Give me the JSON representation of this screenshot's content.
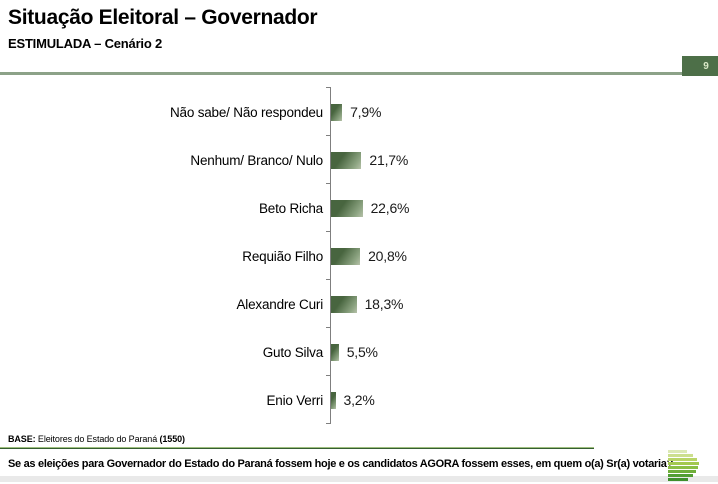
{
  "header": {
    "title": "Situação Eleitoral – Governador",
    "subtitle": "ESTIMULADA – Cenário 2",
    "page_number": "9"
  },
  "chart_data": {
    "type": "bar",
    "orientation": "horizontal",
    "categories": [
      "Não sabe/ Não respondeu",
      "Nenhum/ Branco/ Nulo",
      "Beto Richa",
      "Requião Filho",
      "Alexandre Curi",
      "Guto Silva",
      "Enio Verri"
    ],
    "values": [
      7.9,
      21.7,
      22.6,
      20.8,
      18.3,
      5.5,
      3.2
    ],
    "value_labels": [
      "7,9%",
      "21,7%",
      "22,6%",
      "20,8%",
      "18,3%",
      "5,5%",
      "3,2%"
    ],
    "title": "Situação Eleitoral – Governador",
    "subtitle": "ESTIMULADA – Cenário 2",
    "xlabel": "",
    "ylabel": "",
    "unit": "%",
    "grid": false,
    "legend": false,
    "bar_color_dark": "#48653f",
    "bar_color_light": "#b7c2aa"
  },
  "footer": {
    "base_label": "BASE:",
    "base_text": " Eleitores do Estado do Paraná ",
    "base_count": "(1550)",
    "question": "Se as eleições para Governador do Estado do Paraná fossem hoje e os candidatos AGORA fossem esses, em quem o(a) Sr(a) votaria?"
  },
  "logo": {
    "icon_name": "stacked-bars-logo-icon",
    "stripe_colors": [
      "#dce9b5",
      "#ccdf8e",
      "#b9d567",
      "#a3c94f",
      "#8bbf45",
      "#6fae3a",
      "#529e33",
      "#3f8f2c"
    ],
    "stripe_widths": [
      19,
      25,
      29,
      31,
      30,
      28,
      25,
      20
    ]
  },
  "accent_colors": {
    "header_line": "#8ca288",
    "badge_background": "#4d6f48",
    "base_line": "#355f30"
  }
}
